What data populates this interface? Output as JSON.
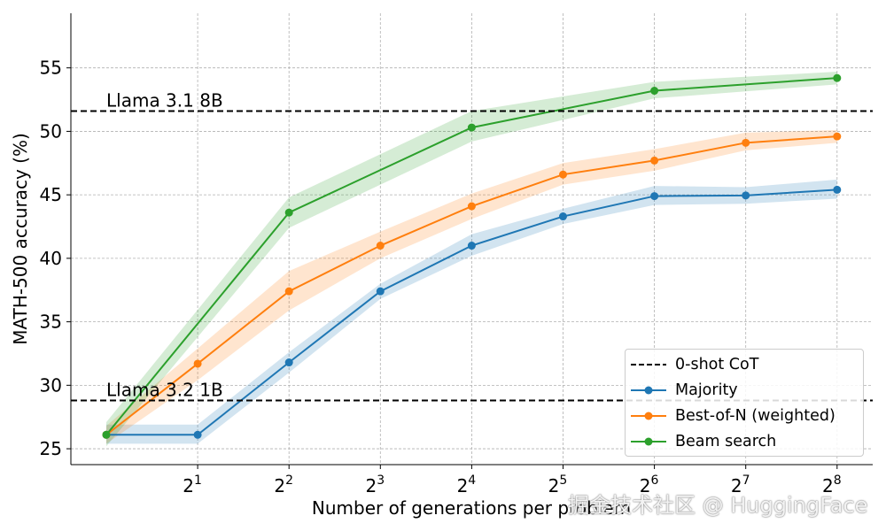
{
  "chart_data": {
    "type": "line",
    "title": "",
    "xlabel": "Number of generations per problem",
    "ylabel": "MATH-500 accuracy (%)",
    "x_scale": "log2",
    "x": [
      1,
      2,
      4,
      8,
      16,
      32,
      64,
      128,
      256
    ],
    "xtick_labels": [
      {
        "base": "2",
        "exp": "1"
      },
      {
        "base": "2",
        "exp": "2"
      },
      {
        "base": "2",
        "exp": "3"
      },
      {
        "base": "2",
        "exp": "4"
      },
      {
        "base": "2",
        "exp": "5"
      },
      {
        "base": "2",
        "exp": "6"
      },
      {
        "base": "2",
        "exp": "7"
      },
      {
        "base": "2",
        "exp": "8"
      }
    ],
    "xtick_values": [
      2,
      4,
      8,
      16,
      32,
      64,
      128,
      256
    ],
    "ylim": [
      23.75,
      59.3
    ],
    "yticks": [
      25,
      30,
      35,
      40,
      45,
      50,
      55
    ],
    "grid": true,
    "legend_position": "bottom-right",
    "reference_lines": [
      {
        "y": 51.6,
        "label": "Llama 3.1 8B"
      },
      {
        "y": 28.8,
        "label": "Llama 3.2 1B"
      }
    ],
    "reference_legend": "0-shot CoT",
    "series": [
      {
        "name": "Majority",
        "color": "#1f77b4",
        "x": [
          1,
          2,
          4,
          8,
          16,
          32,
          64,
          128,
          256
        ],
        "values": [
          26.1,
          26.1,
          31.8,
          37.4,
          41.0,
          43.3,
          44.9,
          44.95,
          45.4
        ],
        "lower": [
          25.4,
          25.4,
          31.0,
          36.8,
          40.2,
          42.7,
          44.2,
          44.3,
          44.7
        ],
        "upper": [
          26.9,
          26.9,
          32.6,
          38.0,
          41.9,
          43.9,
          45.7,
          45.6,
          46.2
        ]
      },
      {
        "name": "Best-of-N (weighted)",
        "color": "#ff7f0e",
        "x": [
          1,
          2,
          4,
          8,
          16,
          32,
          64,
          128,
          256
        ],
        "values": [
          26.1,
          31.7,
          37.4,
          41.0,
          44.1,
          46.6,
          47.7,
          49.1,
          49.6
        ],
        "lower": [
          25.4,
          30.4,
          35.9,
          40.0,
          43.1,
          45.8,
          46.9,
          48.5,
          49.1
        ],
        "upper": [
          26.8,
          32.9,
          39.0,
          42.1,
          45.1,
          47.5,
          48.6,
          49.9,
          50.1
        ]
      },
      {
        "name": "Beam search",
        "color": "#2ca02c",
        "x": [
          1,
          4,
          16,
          64,
          256
        ],
        "values": [
          26.1,
          43.6,
          50.3,
          53.2,
          54.2
        ],
        "lower": [
          25.2,
          42.4,
          49.2,
          52.6,
          53.7
        ],
        "upper": [
          27.1,
          44.8,
          51.6,
          53.9,
          54.7
        ]
      }
    ]
  },
  "watermark": "掘金技术社区 @ HuggingFace"
}
